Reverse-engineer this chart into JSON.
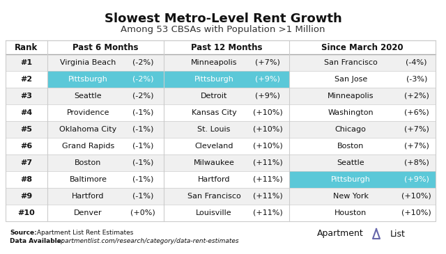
{
  "title": "Slowest Metro-Level Rent Growth",
  "subtitle": "Among 53 CBSAs with Population >1 Million",
  "col_headers": [
    "Rank",
    "Past 6 Months",
    "Past 12 Months",
    "Since March 2020"
  ],
  "ranks": [
    "#1",
    "#2",
    "#3",
    "#4",
    "#5",
    "#6",
    "#7",
    "#8",
    "#9",
    "#10"
  ],
  "col1_city": [
    "Virginia Beach",
    "Pittsburgh",
    "Seattle",
    "Providence",
    "Oklahoma City",
    "Grand Rapids",
    "Boston",
    "Baltimore",
    "Hartford",
    "Denver"
  ],
  "col1_pct": [
    "(-2%)",
    "(-2%)",
    "(-2%)",
    "(-1%)",
    "(-1%)",
    "(-1%)",
    "(-1%)",
    "(-1%)",
    "(-1%)",
    "(+0%)"
  ],
  "col2_city": [
    "Minneapolis",
    "Pittsburgh",
    "Detroit",
    "Kansas City",
    "St. Louis",
    "Cleveland",
    "Milwaukee",
    "Hartford",
    "San Francisco",
    "Louisville"
  ],
  "col2_pct": [
    "(+7%)",
    "(+9%)",
    "(+9%)",
    "(+10%)",
    "(+10%)",
    "(+10%)",
    "(+11%)",
    "(+11%)",
    "(+11%)",
    "(+11%)"
  ],
  "col3_city": [
    "San Francisco",
    "San Jose",
    "Minneapolis",
    "Washington",
    "Chicago",
    "Boston",
    "Seattle",
    "Pittsburgh",
    "New York",
    "Houston"
  ],
  "col3_pct": [
    "(-4%)",
    "(-3%)",
    "(+2%)",
    "(+6%)",
    "(+7%)",
    "(+7%)",
    "(+8%)",
    "(+9%)",
    "(+10%)",
    "(+10%)"
  ],
  "highlight_col1_rows": [
    1
  ],
  "highlight_col2_rows": [
    1
  ],
  "highlight_col3_rows": [
    7
  ],
  "highlight_color": "#5BC8D8",
  "row_bg_odd": "#f0f0f0",
  "row_bg_even": "#ffffff",
  "source_bold": "Source:",
  "source_normal": " Apartment List Rent Estimates",
  "data_bold": "Data Available:",
  "data_italic": " apartmentlist.com/research/category/data-rent-estimates",
  "bg_color": "#ffffff",
  "title_fontsize": 13,
  "subtitle_fontsize": 9.5,
  "header_fontsize": 8.5,
  "cell_fontsize": 8.0,
  "footer_fontsize": 6.5
}
